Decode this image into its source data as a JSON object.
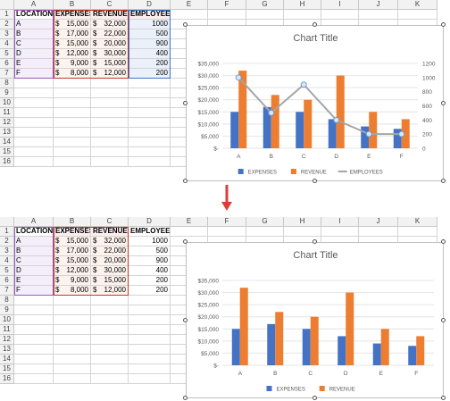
{
  "columns": [
    "A",
    "B",
    "C",
    "D",
    "E",
    "F",
    "G",
    "H",
    "I",
    "J",
    "K"
  ],
  "rows": [
    "1",
    "2",
    "3",
    "4",
    "5",
    "6",
    "7",
    "8",
    "9",
    "10",
    "11",
    "12",
    "13",
    "14",
    "15",
    "16"
  ],
  "table": {
    "headers": [
      "LOCATION",
      "EXPENSES",
      "REVENUE",
      "EMPLOYEES"
    ],
    "data": [
      [
        "A",
        "15,000",
        "32,000",
        "1000"
      ],
      [
        "B",
        "17,000",
        "22,000",
        "500"
      ],
      [
        "C",
        "15,000",
        "20,000",
        "900"
      ],
      [
        "D",
        "12,000",
        "30,000",
        "400"
      ],
      [
        "E",
        "9,000",
        "15,000",
        "200"
      ],
      [
        "F",
        "8,000",
        "12,000",
        "200"
      ]
    ],
    "currency_symbol": "$"
  },
  "colors": {
    "expenses": "#4472c4",
    "revenue": "#ed7d31",
    "employees": "#a5a5a5",
    "arrow": "#e03c3c"
  },
  "chart_data": [
    {
      "type": "bar",
      "title": "Chart Title",
      "categories": [
        "A",
        "B",
        "C",
        "D",
        "E",
        "F"
      ],
      "ylim": [
        0,
        35000
      ],
      "y_ticks": [
        "$35,000",
        "$30,000",
        "$25,000",
        "$20,000",
        "$15,000",
        "$10,000",
        "$5,000",
        "$-"
      ],
      "y2lim": [
        0,
        1200
      ],
      "y2_ticks": [
        "1200",
        "1000",
        "800",
        "600",
        "400",
        "200",
        "0"
      ],
      "series": [
        {
          "name": "EXPENSES",
          "type": "bar",
          "values": [
            15000,
            17000,
            15000,
            12000,
            9000,
            8000
          ]
        },
        {
          "name": "REVENUE",
          "type": "bar",
          "values": [
            32000,
            22000,
            20000,
            30000,
            15000,
            12000
          ]
        },
        {
          "name": "EMPLOYEES",
          "type": "line",
          "axis": "secondary",
          "values": [
            1000,
            500,
            900,
            400,
            200,
            200
          ]
        }
      ],
      "legend": "bottom"
    },
    {
      "type": "bar",
      "title": "Chart Title",
      "categories": [
        "A",
        "B",
        "C",
        "D",
        "E",
        "F"
      ],
      "ylim": [
        0,
        35000
      ],
      "y_ticks": [
        "$35,000",
        "$30,000",
        "$25,000",
        "$20,000",
        "$15,000",
        "$10,000",
        "$5,000",
        "$-"
      ],
      "series": [
        {
          "name": "EXPENSES",
          "type": "bar",
          "values": [
            15000,
            17000,
            15000,
            12000,
            9000,
            8000
          ]
        },
        {
          "name": "REVENUE",
          "type": "bar",
          "values": [
            32000,
            22000,
            20000,
            30000,
            15000,
            12000
          ]
        }
      ],
      "legend": "bottom"
    }
  ]
}
